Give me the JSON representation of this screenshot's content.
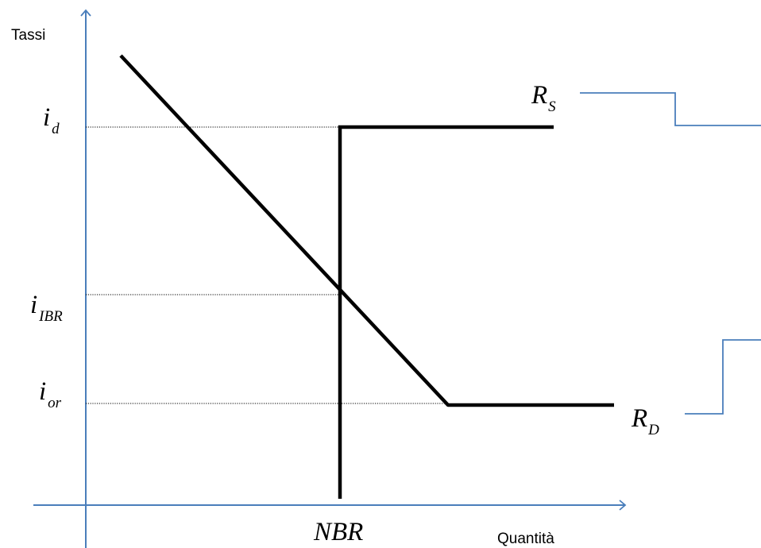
{
  "axes": {
    "y_label": "Tassi",
    "x_label": "Quantità",
    "color": "#4a7ebb"
  },
  "labels": {
    "i_d": {
      "main": "i",
      "sub": "d"
    },
    "i_ibr": {
      "main": "i",
      "sub": "IBR"
    },
    "i_or": {
      "main": "i",
      "sub": "or"
    },
    "nbr": "NBR",
    "r_s": {
      "main": "R",
      "sub": "S"
    },
    "r_d": {
      "main": "R",
      "sub": "D"
    }
  },
  "colors": {
    "curves": "#000000",
    "connectors": "#4a7ebb"
  }
}
